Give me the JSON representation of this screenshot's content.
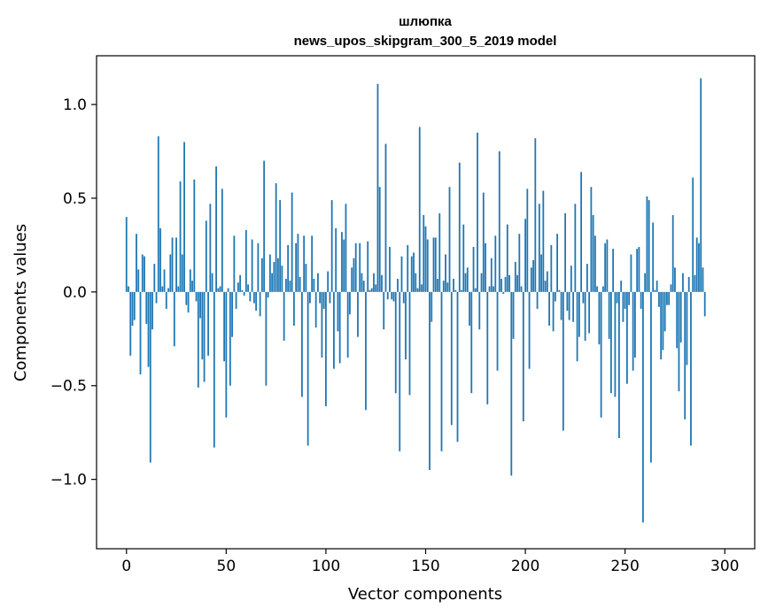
{
  "chart_data": {
    "type": "bar",
    "title": "шлюпка",
    "subtitle": "news_upos_skipgram_300_5_2019 model",
    "xlabel": "Vector components",
    "ylabel": "Components values",
    "xlim": [
      -15,
      315
    ],
    "ylim": [
      -1.37,
      1.26
    ],
    "xticks": [
      0,
      50,
      100,
      150,
      200,
      250,
      300
    ],
    "xtick_labels": [
      "0",
      "50",
      "100",
      "150",
      "200",
      "250",
      "300"
    ],
    "yticks": [
      -1.0,
      -0.5,
      0.0,
      0.5,
      1.0
    ],
    "ytick_labels": [
      "−1.0",
      "−0.5",
      "0.0",
      "0.5",
      "1.0"
    ],
    "grid": false,
    "bar_color": "#1f77b4",
    "values": [
      0.4,
      0.03,
      -0.34,
      -0.18,
      -0.15,
      0.31,
      0.12,
      -0.44,
      0.2,
      0.19,
      -0.17,
      -0.4,
      -0.91,
      -0.2,
      0.15,
      -0.06,
      0.83,
      0.34,
      0.03,
      0.12,
      -0.09,
      0.02,
      0.2,
      0.29,
      -0.29,
      0.29,
      0.03,
      0.59,
      0.2,
      0.8,
      -0.07,
      -0.11,
      0.12,
      0.06,
      0.6,
      -0.05,
      -0.51,
      -0.14,
      -0.36,
      -0.48,
      0.38,
      -0.34,
      0.47,
      0.1,
      -0.83,
      0.67,
      0.02,
      0.03,
      0.55,
      -0.37,
      -0.67,
      0.02,
      -0.5,
      -0.24,
      0.3,
      -0.09,
      0.05,
      0.09,
      0.01,
      -0.02,
      0.33,
      0.04,
      -0.05,
      0.28,
      -0.06,
      -0.1,
      0.26,
      -0.13,
      0.18,
      0.7,
      -0.5,
      -0.03,
      0.2,
      0.1,
      0.16,
      0.58,
      0.18,
      0.49,
      0.14,
      -0.26,
      0.07,
      0.25,
      0.06,
      0.53,
      -0.18,
      0.26,
      0.31,
      0.08,
      -0.56,
      0.3,
      0.15,
      -0.82,
      -0.06,
      0.3,
      0.07,
      -0.19,
      0.1,
      -0.06,
      -0.35,
      -0.09,
      -0.61,
      0.11,
      -0.06,
      0.49,
      -0.41,
      0.34,
      -0.21,
      -0.38,
      0.32,
      0.28,
      0.47,
      -0.35,
      -0.12,
      0.13,
      0.18,
      0.26,
      -0.24,
      0.26,
      0.1,
      0.06,
      -0.63,
      0.27,
      0.01,
      0.02,
      0.1,
      0.04,
      1.11,
      0.56,
      0.09,
      -0.2,
      0.79,
      -0.04,
      0.24,
      -0.04,
      -0.05,
      -0.54,
      0.07,
      -0.85,
      0.19,
      -0.06,
      -0.36,
      0.25,
      -0.55,
      0.19,
      0.21,
      0.1,
      0.02,
      0.88,
      0.04,
      0.41,
      0.35,
      0.28,
      -0.95,
      -0.16,
      0.29,
      0.29,
      0.07,
      0.42,
      -0.85,
      0.06,
      0.2,
      0.05,
      0.56,
      -0.71,
      0.07,
      0.01,
      -0.8,
      0.69,
      0.01,
      0.36,
      0.1,
      0.13,
      -0.18,
      -0.54,
      0.24,
      0.02,
      0.85,
      -0.2,
      0.1,
      0.53,
      0.26,
      -0.6,
      0.03,
      0.18,
      0.03,
      0.3,
      -0.42,
      0.75,
      0.07,
      -0.01,
      0.08,
      0.36,
      0.09,
      -0.98,
      -0.25,
      0.16,
      0.09,
      0.31,
      0.03,
      -0.69,
      0.39,
      0.55,
      -0.41,
      0.13,
      0.17,
      0.82,
      -0.09,
      0.47,
      0.2,
      0.54,
      0.06,
      0.11,
      -0.18,
      0.25,
      -0.21,
      -0.05,
      0.31,
      0.01,
      -0.15,
      -0.74,
      0.42,
      -0.1,
      -0.15,
      0.14,
      -0.16,
      0.47,
      -0.37,
      -0.24,
      0.64,
      -0.06,
      -0.26,
      0.15,
      -0.22,
      0.56,
      0.41,
      0.3,
      0.03,
      -0.28,
      -0.67,
      0.03,
      0.26,
      0.28,
      -0.25,
      -0.54,
      0.23,
      -0.56,
      -0.06,
      -0.78,
      0.06,
      -0.16,
      -0.09,
      -0.49,
      -0.07,
      0.2,
      -0.42,
      -0.35,
      0.23,
      0.24,
      -0.09,
      -1.23,
      0.1,
      0.51,
      0.49,
      -0.91,
      0.37,
      0.01,
      0.06,
      -0.08,
      -0.36,
      -0.31,
      -0.21,
      -0.07,
      -0.07,
      0.04,
      0.41,
      0.13,
      -0.3,
      -0.53,
      -0.27,
      0.1,
      -0.68,
      -0.39,
      0.08,
      -0.82,
      0.61,
      0.09,
      0.29,
      0.26,
      1.14,
      0.13,
      -0.13,
      0.0
    ]
  }
}
